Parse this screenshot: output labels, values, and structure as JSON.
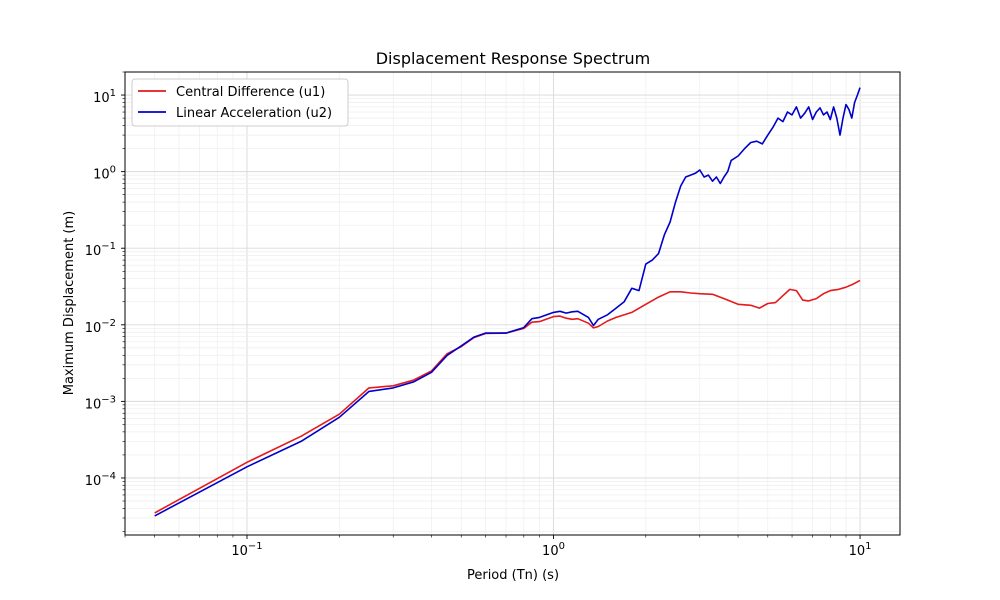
{
  "chart_data": {
    "type": "line",
    "title": "Displacement Response Spectrum",
    "xlabel": "Period (Tn) (s)",
    "ylabel": "Maximum Displacement (m)",
    "xscale": "log",
    "yscale": "log",
    "xlim": [
      0.04,
      13.5
    ],
    "ylim": [
      1.8e-05,
      20
    ],
    "grid": "on",
    "legend_position": "top-left",
    "x_ticks": [
      {
        "value": 0.1,
        "base": "10",
        "exp": "−1"
      },
      {
        "value": 1,
        "base": "10",
        "exp": "0"
      },
      {
        "value": 10,
        "base": "10",
        "exp": "1"
      }
    ],
    "y_ticks": [
      {
        "value": 0.0001,
        "base": "10",
        "exp": "−4"
      },
      {
        "value": 0.001,
        "base": "10",
        "exp": "−3"
      },
      {
        "value": 0.01,
        "base": "10",
        "exp": "−2"
      },
      {
        "value": 0.1,
        "base": "10",
        "exp": "−1"
      },
      {
        "value": 1,
        "base": "10",
        "exp": "0"
      },
      {
        "value": 10,
        "base": "10",
        "exp": "1"
      }
    ],
    "series": [
      {
        "name": "Central Difference (u1)",
        "color": "#e41a1c",
        "x": [
          0.05,
          0.1,
          0.15,
          0.2,
          0.25,
          0.3,
          0.35,
          0.4,
          0.45,
          0.5,
          0.55,
          0.6,
          0.7,
          0.8,
          0.85,
          0.9,
          1.0,
          1.05,
          1.1,
          1.15,
          1.2,
          1.3,
          1.35,
          1.4,
          1.5,
          1.6,
          1.8,
          2.0,
          2.2,
          2.4,
          2.6,
          2.8,
          3.0,
          3.3,
          3.6,
          4.0,
          4.4,
          4.7,
          5.0,
          5.3,
          5.6,
          5.9,
          6.2,
          6.5,
          6.8,
          7.2,
          7.6,
          8.0,
          8.5,
          9.0,
          9.5,
          10.0
        ],
        "y": [
          3.5e-05,
          0.00016,
          0.00035,
          0.00068,
          0.0015,
          0.0016,
          0.0019,
          0.0025,
          0.0042,
          0.0052,
          0.0068,
          0.0077,
          0.0078,
          0.009,
          0.0108,
          0.011,
          0.0128,
          0.013,
          0.0122,
          0.0118,
          0.012,
          0.0105,
          0.0091,
          0.0095,
          0.0112,
          0.0125,
          0.0145,
          0.0185,
          0.023,
          0.027,
          0.027,
          0.026,
          0.0255,
          0.025,
          0.022,
          0.0185,
          0.018,
          0.0165,
          0.019,
          0.0195,
          0.024,
          0.029,
          0.028,
          0.021,
          0.0205,
          0.022,
          0.0255,
          0.028,
          0.029,
          0.031,
          0.034,
          0.038
        ]
      },
      {
        "name": "Linear Acceleration (u2)",
        "color": "#0000cc",
        "x": [
          0.05,
          0.1,
          0.15,
          0.2,
          0.25,
          0.3,
          0.35,
          0.4,
          0.45,
          0.5,
          0.55,
          0.6,
          0.7,
          0.8,
          0.85,
          0.9,
          1.0,
          1.05,
          1.1,
          1.15,
          1.2,
          1.3,
          1.35,
          1.4,
          1.5,
          1.6,
          1.7,
          1.8,
          1.9,
          2.0,
          2.1,
          2.2,
          2.3,
          2.4,
          2.5,
          2.6,
          2.7,
          2.8,
          2.9,
          3.0,
          3.1,
          3.2,
          3.3,
          3.4,
          3.5,
          3.6,
          3.7,
          3.8,
          4.0,
          4.2,
          4.4,
          4.6,
          4.8,
          5.0,
          5.2,
          5.4,
          5.6,
          5.8,
          6.0,
          6.2,
          6.4,
          6.6,
          6.8,
          7.0,
          7.2,
          7.4,
          7.6,
          7.8,
          8.0,
          8.2,
          8.4,
          8.6,
          8.8,
          9.0,
          9.2,
          9.4,
          9.6,
          9.8,
          10.0
        ],
        "y": [
          3.2e-05,
          0.00014,
          0.0003,
          0.00062,
          0.00135,
          0.0015,
          0.0018,
          0.0024,
          0.004,
          0.0053,
          0.0069,
          0.0078,
          0.0078,
          0.0092,
          0.012,
          0.0125,
          0.0145,
          0.015,
          0.0142,
          0.0148,
          0.015,
          0.0125,
          0.0098,
          0.0118,
          0.0135,
          0.0165,
          0.02,
          0.03,
          0.028,
          0.062,
          0.07,
          0.085,
          0.15,
          0.22,
          0.4,
          0.65,
          0.85,
          0.9,
          0.95,
          1.05,
          0.85,
          0.9,
          0.75,
          0.85,
          0.7,
          0.85,
          1.0,
          1.4,
          1.6,
          2.0,
          2.4,
          2.5,
          2.3,
          3.0,
          3.8,
          5.0,
          4.5,
          6.0,
          5.5,
          7.0,
          5.0,
          5.8,
          7.0,
          4.8,
          6.0,
          6.8,
          5.5,
          6.0,
          4.8,
          7.0,
          5.0,
          3.0,
          5.0,
          7.5,
          6.5,
          5.0,
          8.0,
          10.0,
          12.5
        ]
      }
    ]
  }
}
